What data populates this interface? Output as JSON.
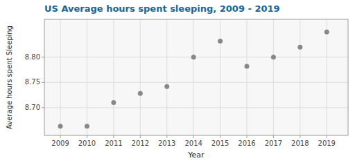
{
  "chart_data": {
    "type": "scatter",
    "title": "US Average hours spent sleeping, 2009 - 2019",
    "xlabel": "Year",
    "ylabel": "Average hours spent Sleeping",
    "x": [
      2009,
      2010,
      2011,
      2012,
      2013,
      2014,
      2015,
      2016,
      2017,
      2018,
      2019
    ],
    "values": [
      8.663,
      8.663,
      8.71,
      8.728,
      8.742,
      8.8,
      8.832,
      8.782,
      8.8,
      8.82,
      8.85
    ],
    "color": "#888888",
    "xlim": [
      2008.4,
      2019.8
    ],
    "ylim": [
      8.645,
      8.875
    ],
    "xticks": [
      2009,
      2010,
      2011,
      2012,
      2013,
      2014,
      2015,
      2016,
      2017,
      2018,
      2019
    ],
    "yticks": [
      {
        "value": 8.7,
        "label": "8.70"
      },
      8.75,
      {
        "value": 8.8,
        "label": "8.80"
      }
    ],
    "grid": true
  }
}
